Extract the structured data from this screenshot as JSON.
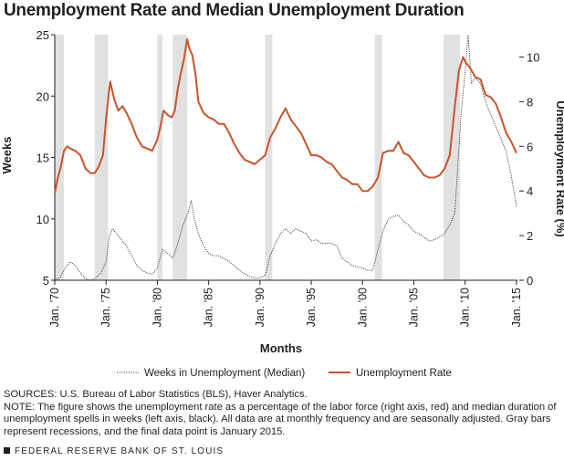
{
  "title": "Unemployment Rate and Median Unemployment Duration",
  "sources": "SOURCES: U.S. Bureau of Labor Statistics (BLS), Haver Analytics.",
  "note": "NOTE: The figure shows the unemployment rate as a percentage of the labor force (right axis, red) and median duration of unemployment spells in weeks (left axis, black). All data are at monthly frequency and are seasonally adjusted. Gray bars represent recessions, and the final data point is January 2015.",
  "footer": "FEDERAL RESERVE BANK OF ST. LOUIS",
  "colors": {
    "unemployment_rate": "#c8542b",
    "median_weeks": "#231f20",
    "recession": "#e1e1e1"
  },
  "chart_data": {
    "type": "line",
    "xlabel": "Months",
    "ylabel_left": "Weeks",
    "ylabel_right": "Unemployment Rate (%)",
    "xlim": [
      1970.0,
      2015.1
    ],
    "ylim_left": [
      5,
      25
    ],
    "ylim_right": [
      0,
      11
    ],
    "x_ticks": [
      {
        "value": 1970,
        "label": "Jan. '70"
      },
      {
        "value": 1975,
        "label": "Jan. '75"
      },
      {
        "value": 1980,
        "label": "Jan. '80"
      },
      {
        "value": 1985,
        "label": "Jan. '85"
      },
      {
        "value": 1990,
        "label": "Jan. '90"
      },
      {
        "value": 1995,
        "label": "Jan. '95"
      },
      {
        "value": 2000,
        "label": "Jan. '00"
      },
      {
        "value": 2005,
        "label": "Jan. '05"
      },
      {
        "value": 2010,
        "label": "Jan. '10"
      },
      {
        "value": 2015,
        "label": "Jan. '15"
      }
    ],
    "y_ticks_left": [
      5,
      10,
      15,
      20,
      25
    ],
    "y_ticks_right": [
      0,
      2,
      4,
      6,
      8,
      10
    ],
    "recessions": [
      [
        1970.0,
        1970.9
      ],
      [
        1973.9,
        1975.2
      ],
      [
        1980.0,
        1980.5
      ],
      [
        1981.5,
        1982.9
      ],
      [
        1990.5,
        1991.2
      ],
      [
        2001.2,
        2001.9
      ],
      [
        2007.9,
        2009.5
      ]
    ],
    "legend_position": "bottom",
    "series": [
      {
        "name": "Weeks in Unemployment (Median)",
        "axis": "left",
        "style": "dotted",
        "x": [
          1970.0,
          1970.5,
          1971.0,
          1971.5,
          1972.0,
          1972.5,
          1973.0,
          1973.5,
          1974.0,
          1974.5,
          1975.0,
          1975.3,
          1975.6,
          1976.0,
          1976.5,
          1977.0,
          1977.5,
          1978.0,
          1978.5,
          1979.0,
          1979.5,
          1980.0,
          1980.5,
          1981.0,
          1981.5,
          1982.0,
          1982.5,
          1983.0,
          1983.3,
          1983.6,
          1984.0,
          1984.5,
          1985.0,
          1985.5,
          1986.0,
          1987.0,
          1987.5,
          1988.0,
          1989.0,
          1989.5,
          1990.0,
          1990.5,
          1991.0,
          1991.5,
          1992.0,
          1992.5,
          1993.0,
          1993.5,
          1994.0,
          1994.5,
          1995.0,
          1995.5,
          1996.0,
          1997.0,
          1997.5,
          1998.0,
          1998.5,
          1999.0,
          2000.0,
          2000.5,
          2001.0,
          2001.5,
          2002.0,
          2002.5,
          2003.0,
          2003.5,
          2004.0,
          2004.5,
          2005.0,
          2005.5,
          2006.0,
          2006.5,
          2007.0,
          2007.5,
          2008.0,
          2008.5,
          2009.0,
          2009.3,
          2009.6,
          2010.0,
          2010.3,
          2010.6,
          2011.0,
          2011.5,
          2012.0,
          2012.5,
          2013.0,
          2013.5,
          2014.0,
          2014.5,
          2015.0
        ],
        "values": [
          5.0,
          5.2,
          6.0,
          6.5,
          6.2,
          5.6,
          5.1,
          5.0,
          5.2,
          5.6,
          6.5,
          8.5,
          9.2,
          8.8,
          8.3,
          7.8,
          7.0,
          6.2,
          5.8,
          5.6,
          5.5,
          6.0,
          7.5,
          7.2,
          6.8,
          8.0,
          9.5,
          10.5,
          11.5,
          10.0,
          8.8,
          7.8,
          7.2,
          7.0,
          7.0,
          6.5,
          6.2,
          5.8,
          5.3,
          5.2,
          5.2,
          5.4,
          7.0,
          8.0,
          8.8,
          9.2,
          8.8,
          9.2,
          9.0,
          8.8,
          8.2,
          8.3,
          8.0,
          8.0,
          7.8,
          6.8,
          6.5,
          6.2,
          6.0,
          5.8,
          5.8,
          7.5,
          9.0,
          10.0,
          10.2,
          10.3,
          9.8,
          9.5,
          9.0,
          8.8,
          8.5,
          8.2,
          8.3,
          8.5,
          8.8,
          9.5,
          10.5,
          14.5,
          18.5,
          22.0,
          25.0,
          21.0,
          21.5,
          21.0,
          19.5,
          18.5,
          17.5,
          16.5,
          15.5,
          13.5,
          11.0
        ]
      },
      {
        "name": "Unemployment Rate",
        "axis": "right",
        "style": "solid",
        "x": [
          1970.0,
          1970.3,
          1970.6,
          1970.9,
          1971.2,
          1971.5,
          1972.0,
          1972.5,
          1973.0,
          1973.5,
          1973.9,
          1974.3,
          1974.7,
          1975.0,
          1975.2,
          1975.4,
          1975.8,
          1976.2,
          1976.6,
          1977.0,
          1977.5,
          1978.0,
          1978.5,
          1979.0,
          1979.5,
          1980.0,
          1980.3,
          1980.6,
          1981.0,
          1981.4,
          1981.7,
          1982.0,
          1982.3,
          1982.6,
          1982.9,
          1983.1,
          1983.4,
          1983.7,
          1984.0,
          1984.5,
          1985.0,
          1985.5,
          1986.0,
          1986.5,
          1987.0,
          1987.5,
          1988.0,
          1988.5,
          1989.0,
          1989.5,
          1990.0,
          1990.5,
          1991.0,
          1991.5,
          1992.0,
          1992.5,
          1993.0,
          1993.5,
          1994.0,
          1994.5,
          1995.0,
          1995.5,
          1996.0,
          1996.5,
          1997.0,
          1997.5,
          1998.0,
          1998.5,
          1999.0,
          1999.5,
          2000.0,
          2000.5,
          2001.0,
          2001.5,
          2002.0,
          2002.5,
          2003.0,
          2003.5,
          2004.0,
          2004.5,
          2005.0,
          2005.5,
          2006.0,
          2006.5,
          2007.0,
          2007.5,
          2008.0,
          2008.5,
          2009.0,
          2009.4,
          2009.8,
          2010.0,
          2010.5,
          2011.0,
          2011.5,
          2012.0,
          2012.5,
          2013.0,
          2013.5,
          2014.0,
          2014.5,
          2015.0
        ],
        "values": [
          3.9,
          4.6,
          5.1,
          5.8,
          6.0,
          5.9,
          5.8,
          5.6,
          5.0,
          4.8,
          4.8,
          5.1,
          5.6,
          7.2,
          8.1,
          8.9,
          8.1,
          7.6,
          7.8,
          7.5,
          7.0,
          6.4,
          6.0,
          5.9,
          5.8,
          6.3,
          6.9,
          7.6,
          7.4,
          7.3,
          7.6,
          8.6,
          9.3,
          9.9,
          10.8,
          10.4,
          10.1,
          9.3,
          8.0,
          7.5,
          7.3,
          7.2,
          7.0,
          7.0,
          6.6,
          6.1,
          5.7,
          5.4,
          5.3,
          5.2,
          5.4,
          5.6,
          6.4,
          6.8,
          7.3,
          7.7,
          7.2,
          6.9,
          6.6,
          6.1,
          5.6,
          5.6,
          5.5,
          5.3,
          5.2,
          4.9,
          4.6,
          4.5,
          4.3,
          4.3,
          4.0,
          4.0,
          4.2,
          4.6,
          5.7,
          5.8,
          5.8,
          6.2,
          5.7,
          5.6,
          5.3,
          5.0,
          4.7,
          4.6,
          4.6,
          4.7,
          5.0,
          5.6,
          7.8,
          9.4,
          10.0,
          9.8,
          9.5,
          9.1,
          9.0,
          8.3,
          8.2,
          7.9,
          7.3,
          6.6,
          6.2,
          5.7
        ]
      }
    ]
  }
}
